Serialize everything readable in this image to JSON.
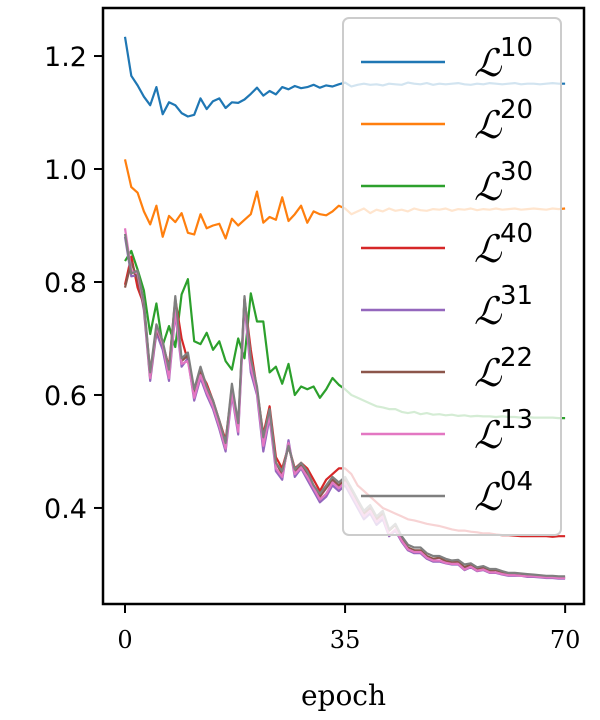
{
  "chart_data": {
    "type": "line",
    "title": "",
    "xlabel": "epoch",
    "ylabel": "",
    "xlim": [
      -3.5,
      73
    ],
    "ylim": [
      0.23,
      1.285
    ],
    "xticks": [
      0,
      35,
      70
    ],
    "xtick_labels": [
      "0",
      "35",
      "70"
    ],
    "yticks": [
      0.4,
      0.6,
      0.8,
      1.0,
      1.2
    ],
    "ytick_labels": [
      "0.4",
      "0.6",
      "0.8",
      "1.0",
      "1.2"
    ],
    "grid": false,
    "legend_position": "top-right",
    "series": [
      {
        "name": "10",
        "color": "#1f77b4",
        "values": [
          1.234,
          1.165,
          1.148,
          1.128,
          1.113,
          1.145,
          1.097,
          1.118,
          1.113,
          1.099,
          1.093,
          1.096,
          1.125,
          1.106,
          1.12,
          1.125,
          1.108,
          1.118,
          1.117,
          1.123,
          1.133,
          1.144,
          1.13,
          1.138,
          1.132,
          1.145,
          1.141,
          1.147,
          1.143,
          1.145,
          1.149,
          1.144,
          1.148,
          1.146,
          1.15,
          1.153,
          1.146,
          1.149,
          1.151,
          1.149,
          1.15,
          1.148,
          1.151,
          1.15,
          1.149,
          1.153,
          1.151,
          1.15,
          1.152,
          1.149,
          1.151,
          1.15,
          1.151,
          1.152,
          1.15,
          1.149,
          1.151,
          1.15,
          1.152,
          1.151,
          1.15,
          1.151,
          1.152,
          1.15,
          1.151,
          1.151,
          1.15,
          1.151,
          1.152,
          1.151,
          1.151
        ]
      },
      {
        "name": "20",
        "color": "#ff7f0e",
        "values": [
          1.017,
          0.968,
          0.958,
          0.925,
          0.902,
          0.935,
          0.88,
          0.917,
          0.906,
          0.922,
          0.887,
          0.884,
          0.92,
          0.895,
          0.9,
          0.903,
          0.877,
          0.912,
          0.9,
          0.91,
          0.92,
          0.96,
          0.905,
          0.915,
          0.91,
          0.95,
          0.908,
          0.92,
          0.935,
          0.905,
          0.925,
          0.92,
          0.918,
          0.925,
          0.935,
          0.93,
          0.92,
          0.925,
          0.93,
          0.922,
          0.928,
          0.925,
          0.93,
          0.926,
          0.928,
          0.925,
          0.93,
          0.927,
          0.926,
          0.929,
          0.928,
          0.93,
          0.926,
          0.929,
          0.928,
          0.93,
          0.927,
          0.929,
          0.928,
          0.93,
          0.928,
          0.929,
          0.93,
          0.928,
          0.929,
          0.93,
          0.929,
          0.928,
          0.93,
          0.929,
          0.93
        ]
      },
      {
        "name": "30",
        "color": "#2ca02c",
        "values": [
          0.837,
          0.855,
          0.822,
          0.785,
          0.708,
          0.762,
          0.688,
          0.722,
          0.685,
          0.778,
          0.805,
          0.695,
          0.69,
          0.71,
          0.68,
          0.695,
          0.66,
          0.645,
          0.7,
          0.665,
          0.78,
          0.73,
          0.73,
          0.64,
          0.65,
          0.62,
          0.655,
          0.6,
          0.615,
          0.61,
          0.615,
          0.595,
          0.61,
          0.63,
          0.618,
          0.61,
          0.6,
          0.595,
          0.59,
          0.585,
          0.58,
          0.578,
          0.575,
          0.575,
          0.57,
          0.568,
          0.57,
          0.566,
          0.568,
          0.565,
          0.566,
          0.564,
          0.565,
          0.563,
          0.564,
          0.562,
          0.563,
          0.562,
          0.562,
          0.561,
          0.562,
          0.561,
          0.561,
          0.56,
          0.561,
          0.56,
          0.56,
          0.56,
          0.56,
          0.559,
          0.559
        ]
      },
      {
        "name": "40",
        "color": "#d62728",
        "values": [
          0.795,
          0.845,
          0.79,
          0.76,
          0.64,
          0.71,
          0.69,
          0.65,
          0.77,
          0.7,
          0.66,
          0.61,
          0.64,
          0.62,
          0.59,
          0.555,
          0.52,
          0.61,
          0.54,
          0.77,
          0.68,
          0.61,
          0.53,
          0.58,
          0.49,
          0.47,
          0.51,
          0.47,
          0.48,
          0.47,
          0.45,
          0.43,
          0.45,
          0.46,
          0.47,
          0.47,
          0.46,
          0.44,
          0.43,
          0.42,
          0.41,
          0.4,
          0.395,
          0.39,
          0.385,
          0.38,
          0.378,
          0.375,
          0.372,
          0.37,
          0.368,
          0.365,
          0.362,
          0.36,
          0.36,
          0.358,
          0.357,
          0.355,
          0.355,
          0.353,
          0.352,
          0.352,
          0.351,
          0.35,
          0.35,
          0.35,
          0.35,
          0.35,
          0.349,
          0.35,
          0.35
        ]
      },
      {
        "name": "31",
        "color": "#9467bd",
        "values": [
          0.88,
          0.81,
          0.812,
          0.75,
          0.625,
          0.71,
          0.68,
          0.625,
          0.745,
          0.65,
          0.665,
          0.59,
          0.63,
          0.6,
          0.575,
          0.54,
          0.5,
          0.6,
          0.53,
          0.76,
          0.64,
          0.6,
          0.5,
          0.56,
          0.465,
          0.45,
          0.52,
          0.455,
          0.47,
          0.45,
          0.43,
          0.41,
          0.42,
          0.44,
          0.43,
          0.44,
          0.42,
          0.4,
          0.38,
          0.39,
          0.37,
          0.38,
          0.35,
          0.36,
          0.34,
          0.325,
          0.32,
          0.32,
          0.31,
          0.305,
          0.305,
          0.302,
          0.3,
          0.3,
          0.29,
          0.295,
          0.288,
          0.29,
          0.285,
          0.285,
          0.282,
          0.28,
          0.28,
          0.28,
          0.278,
          0.278,
          0.277,
          0.276,
          0.276,
          0.275,
          0.275
        ]
      },
      {
        "name": "22",
        "color": "#8c564b",
        "values": [
          0.79,
          0.835,
          0.805,
          0.755,
          0.63,
          0.715,
          0.69,
          0.64,
          0.76,
          0.66,
          0.67,
          0.605,
          0.645,
          0.61,
          0.59,
          0.55,
          0.51,
          0.615,
          0.545,
          0.77,
          0.66,
          0.61,
          0.52,
          0.575,
          0.48,
          0.46,
          0.51,
          0.465,
          0.475,
          0.46,
          0.44,
          0.42,
          0.435,
          0.45,
          0.44,
          0.45,
          0.43,
          0.41,
          0.39,
          0.4,
          0.38,
          0.39,
          0.36,
          0.37,
          0.345,
          0.33,
          0.325,
          0.325,
          0.315,
          0.31,
          0.312,
          0.306,
          0.304,
          0.305,
          0.295,
          0.3,
          0.292,
          0.294,
          0.288,
          0.29,
          0.285,
          0.283,
          0.283,
          0.282,
          0.281,
          0.28,
          0.279,
          0.278,
          0.278,
          0.277,
          0.277
        ]
      },
      {
        "name": "13",
        "color": "#e377c2",
        "values": [
          0.895,
          0.82,
          0.815,
          0.76,
          0.63,
          0.72,
          0.69,
          0.63,
          0.75,
          0.655,
          0.66,
          0.595,
          0.635,
          0.605,
          0.58,
          0.545,
          0.505,
          0.605,
          0.535,
          0.765,
          0.65,
          0.605,
          0.51,
          0.565,
          0.47,
          0.455,
          0.515,
          0.46,
          0.472,
          0.455,
          0.435,
          0.415,
          0.425,
          0.445,
          0.435,
          0.445,
          0.425,
          0.405,
          0.385,
          0.395,
          0.375,
          0.385,
          0.352,
          0.362,
          0.342,
          0.327,
          0.322,
          0.322,
          0.312,
          0.307,
          0.307,
          0.303,
          0.301,
          0.301,
          0.291,
          0.296,
          0.289,
          0.291,
          0.286,
          0.286,
          0.283,
          0.281,
          0.281,
          0.28,
          0.279,
          0.279,
          0.278,
          0.277,
          0.277,
          0.276,
          0.276
        ]
      },
      {
        "name": "04",
        "color": "#7f7f7f",
        "values": [
          0.885,
          0.815,
          0.82,
          0.765,
          0.64,
          0.725,
          0.695,
          0.645,
          0.775,
          0.665,
          0.675,
          0.61,
          0.65,
          0.615,
          0.59,
          0.555,
          0.515,
          0.62,
          0.55,
          0.775,
          0.665,
          0.615,
          0.525,
          0.575,
          0.48,
          0.465,
          0.51,
          0.468,
          0.48,
          0.465,
          0.44,
          0.425,
          0.44,
          0.455,
          0.445,
          0.455,
          0.435,
          0.415,
          0.395,
          0.405,
          0.385,
          0.395,
          0.362,
          0.372,
          0.35,
          0.335,
          0.33,
          0.33,
          0.32,
          0.315,
          0.315,
          0.31,
          0.307,
          0.308,
          0.3,
          0.302,
          0.295,
          0.297,
          0.292,
          0.292,
          0.288,
          0.285,
          0.285,
          0.284,
          0.283,
          0.282,
          0.281,
          0.28,
          0.28,
          0.279,
          0.279
        ]
      }
    ],
    "legend_symbol": "ℒ"
  }
}
